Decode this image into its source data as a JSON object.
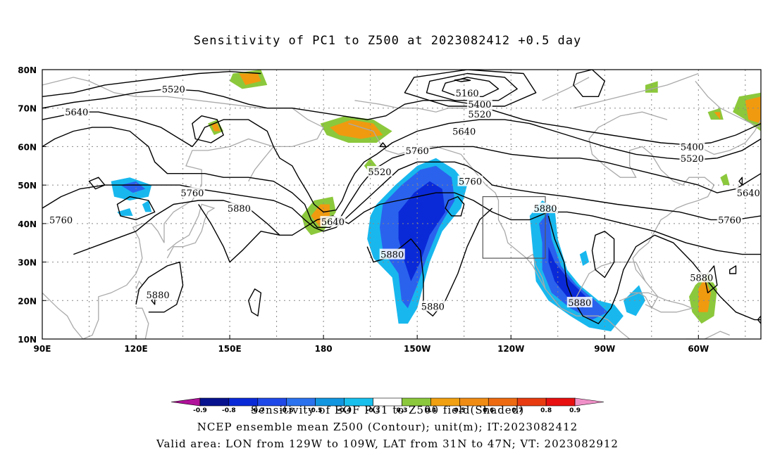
{
  "title": "Sensitivity of PC1 to Z500 at 2023082412 +0.5 day",
  "map": {
    "lat_labels": [
      "80N",
      "70N",
      "60N",
      "50N",
      "40N",
      "30N",
      "20N",
      "10N"
    ],
    "lon_labels": [
      "90E",
      "120E",
      "150E",
      "180",
      "150W",
      "120W",
      "90W",
      "60W"
    ],
    "lon_range": [
      90,
      320
    ],
    "lat_range": [
      10,
      80
    ],
    "grid": "dotted",
    "valid_area_box": {
      "lon": [
        231,
        251
      ],
      "lat": [
        31,
        47
      ]
    },
    "contour_labels": [
      {
        "text": "5520",
        "lon": 132,
        "lat": 75
      },
      {
        "text": "5640",
        "lon": 101,
        "lat": 69
      },
      {
        "text": "5160",
        "lon": 226,
        "lat": 74
      },
      {
        "text": "5400",
        "lon": 230,
        "lat": 71
      },
      {
        "text": "5520",
        "lon": 230,
        "lat": 68.5
      },
      {
        "text": "5640",
        "lon": 225,
        "lat": 64
      },
      {
        "text": "5760",
        "lon": 210,
        "lat": 59
      },
      {
        "text": "5520",
        "lon": 198,
        "lat": 53.5
      },
      {
        "text": "5760",
        "lon": 227,
        "lat": 51
      },
      {
        "text": "5760",
        "lon": 138,
        "lat": 48
      },
      {
        "text": "5880",
        "lon": 153,
        "lat": 44
      },
      {
        "text": "5640",
        "lon": 183,
        "lat": 40.5
      },
      {
        "text": "5760",
        "lon": 96,
        "lat": 41
      },
      {
        "text": "5880",
        "lon": 251,
        "lat": 44
      },
      {
        "text": "5400",
        "lon": 298,
        "lat": 60
      },
      {
        "text": "5520",
        "lon": 298,
        "lat": 57
      },
      {
        "text": "5640",
        "lon": 316,
        "lat": 48
      },
      {
        "text": "5760",
        "lon": 310,
        "lat": 41
      },
      {
        "text": "5880",
        "lon": 202,
        "lat": 32
      },
      {
        "text": "5880",
        "lon": 127,
        "lat": 21.5
      },
      {
        "text": "5880",
        "lon": 215,
        "lat": 18.5
      },
      {
        "text": "5880",
        "lon": 262,
        "lat": 19.5
      },
      {
        "text": "5880",
        "lon": 301,
        "lat": 26
      }
    ],
    "colors": {
      "contour": "#000000",
      "coast": "#aaaaaa",
      "blue_dark": "#0a2ad8",
      "blue_mid": "#2a62ee",
      "blue_light": "#18b8ee",
      "green": "#8cc83c",
      "orange": "#f09a10",
      "red": "#ee5a12"
    }
  },
  "colorbar": {
    "labels": [
      "-0.9",
      "-0.8",
      "-0.7",
      "-0.6",
      "-0.5",
      "-0.4",
      "-0.3",
      "0.3",
      "0.4",
      "0.5",
      "0.6",
      "0.7",
      "0.8",
      "0.9"
    ],
    "colors": [
      "#b0129a",
      "#06128e",
      "#0a2ad8",
      "#1e48e8",
      "#2a72ee",
      "#1296e0",
      "#18c0ee",
      "#ffffff",
      "#8cc83c",
      "#f0a010",
      "#f08c14",
      "#ee6a10",
      "#e83c10",
      "#e81010",
      "#f090c8"
    ]
  },
  "captions": [
    "Sensitivity of EOF PC1 to Z500 field(Shaded)",
    "NCEP ensemble mean Z500 (Contour); unit(m); IT:2023082412",
    "Valid area: LON from 129W to 109W, LAT from 31N to 47N; VT: 2023082912"
  ]
}
